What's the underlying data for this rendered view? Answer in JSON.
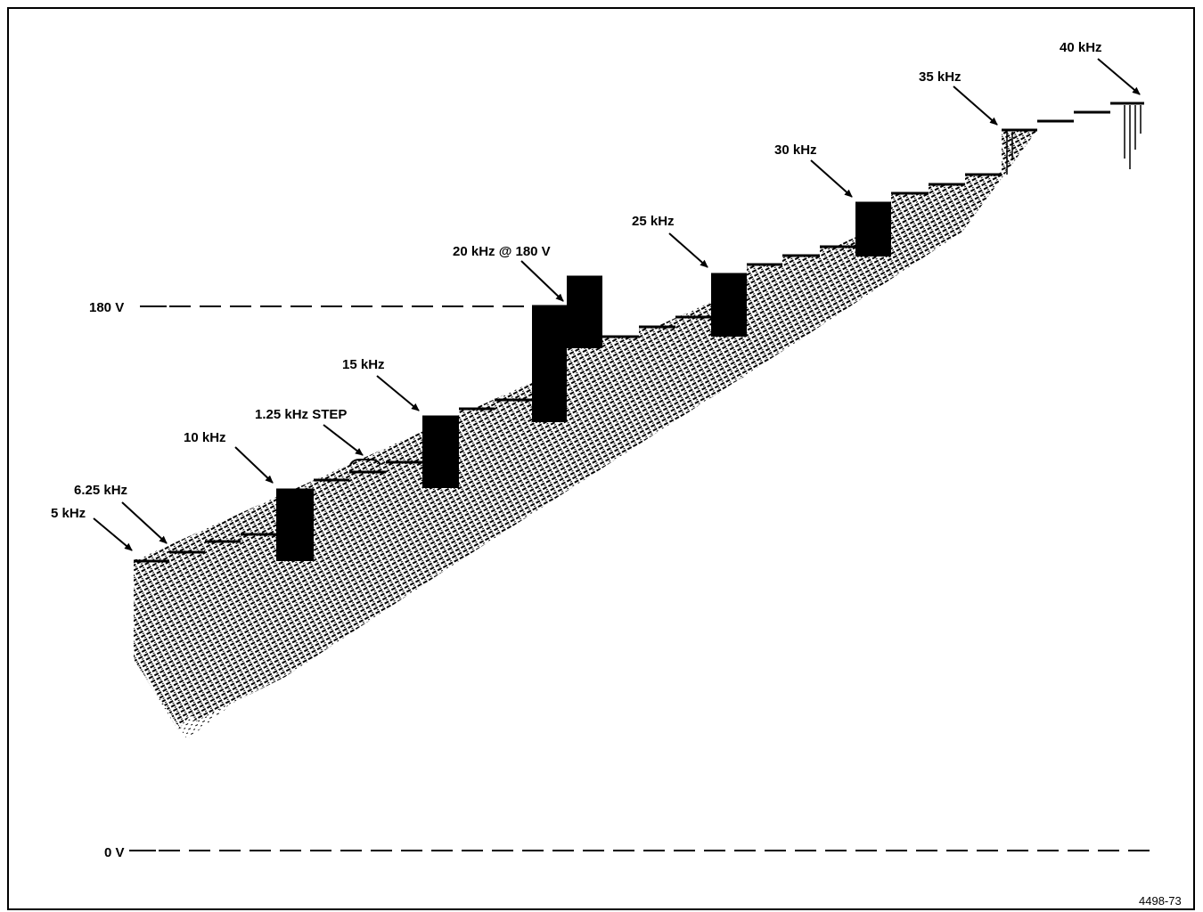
{
  "levels": {
    "ref_180v": "180 V",
    "ref_0v": "0 V"
  },
  "annotations": {
    "f_5khz": "5 kHz",
    "f_6_25khz": "6.25 kHz",
    "f_10khz": "10 kHz",
    "step_1_25khz": "1.25 kHz STEP",
    "f_15khz": "15 kHz",
    "f_20khz_180v": "20 kHz @ 180 V",
    "f_25khz": "25 kHz",
    "f_30khz": "30 kHz",
    "f_35khz": "35 kHz",
    "f_40khz": "40 kHz"
  },
  "figure_number": "4498-73",
  "colors": {
    "ink": "#000000",
    "paper": "#ffffff"
  }
}
